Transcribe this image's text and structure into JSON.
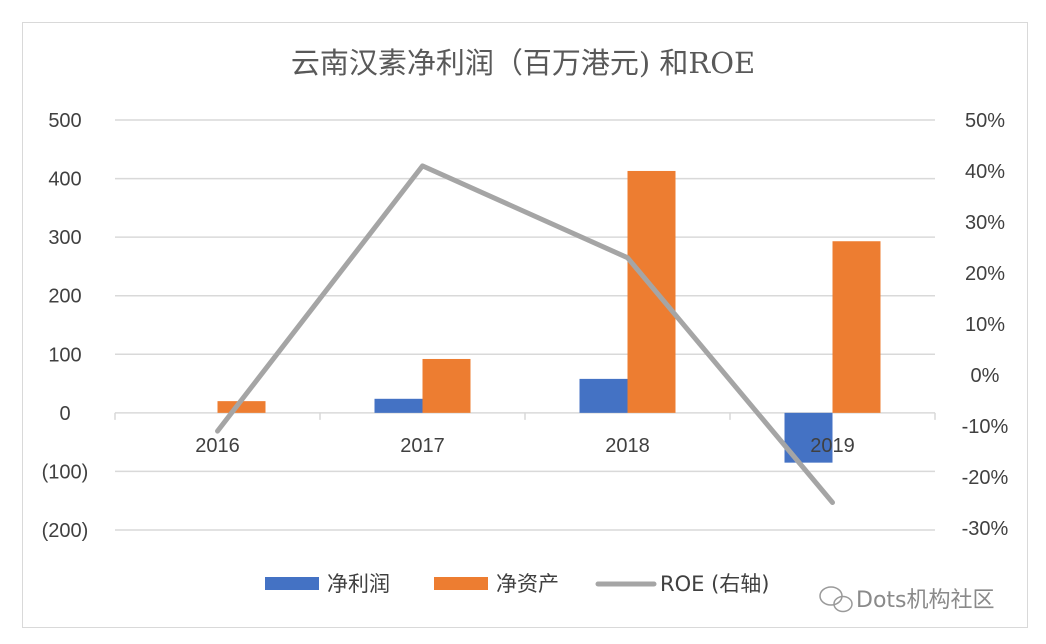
{
  "chart_data": {
    "type": "bar",
    "title": "云南汉素净利润（百万港元) 和ROE",
    "categories": [
      "2016",
      "2017",
      "2018",
      "2019"
    ],
    "series": [
      {
        "name": "净利润",
        "type": "bar",
        "axis": "left",
        "color": "#4472C4",
        "values": [
          0,
          24,
          58,
          -85
        ]
      },
      {
        "name": "净资产",
        "type": "bar",
        "axis": "left",
        "color": "#ED7D31",
        "values": [
          20,
          92,
          413,
          293
        ]
      },
      {
        "name": "ROE (右轴)",
        "type": "line",
        "axis": "right",
        "color": "#A5A5A5",
        "values": [
          -11,
          41,
          23,
          -25
        ]
      }
    ],
    "left_axis": {
      "range": [
        -200,
        500
      ],
      "ticks": [
        500,
        400,
        300,
        200,
        100,
        0,
        -100,
        -200
      ],
      "tick_labels": [
        "500",
        "400",
        "300",
        "200",
        "100",
        "0",
        "(100)",
        "(200)"
      ],
      "negative_label_color": "#FF0000"
    },
    "right_axis": {
      "range": [
        -30,
        50
      ],
      "unit": "%",
      "ticks": [
        50,
        40,
        30,
        20,
        10,
        0,
        -10,
        -20,
        -30
      ],
      "tick_labels": [
        "50%",
        "40%",
        "30%",
        "20%",
        "10%",
        "0%",
        "-10%",
        "-20%",
        "-30%"
      ]
    },
    "grid": true,
    "legend_position": "bottom"
  },
  "watermark": "Dots机构社区"
}
